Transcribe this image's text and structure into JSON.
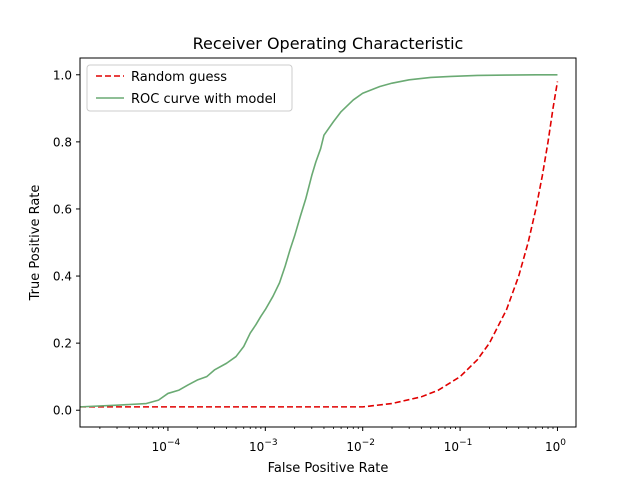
{
  "chart_data": {
    "type": "line",
    "title": "Receiver Operating Characteristic",
    "xlabel": "False Positive Rate",
    "ylabel": "True Positive Rate",
    "xscale": "log",
    "xlim": [
      1.25e-05,
      1.55
    ],
    "ylim": [
      -0.05,
      1.05
    ],
    "grid": false,
    "legend": "upper left",
    "x_ticks": [
      {
        "value": 0.0001,
        "base": "10",
        "exponent": "−4"
      },
      {
        "value": 0.001,
        "base": "10",
        "exponent": "−3"
      },
      {
        "value": 0.01,
        "base": "10",
        "exponent": "−2"
      },
      {
        "value": 0.1,
        "base": "10",
        "exponent": "−1"
      },
      {
        "value": 1,
        "base": "10",
        "exponent": "0"
      }
    ],
    "y_ticks": [
      {
        "value": 0.0,
        "label": "0.0"
      },
      {
        "value": 0.2,
        "label": "0.2"
      },
      {
        "value": 0.4,
        "label": "0.4"
      },
      {
        "value": 0.6,
        "label": "0.6"
      },
      {
        "value": 0.8,
        "label": "0.8"
      },
      {
        "value": 1.0,
        "label": "1.0"
      }
    ],
    "series": [
      {
        "name": "Random guess",
        "color": "#e00000",
        "style": "dashed",
        "x": [
          1.25e-05,
          0.001,
          0.01,
          0.02,
          0.04,
          0.06,
          0.1,
          0.15,
          0.2,
          0.3,
          0.4,
          0.5,
          0.6,
          0.7,
          0.8,
          0.9,
          1.0
        ],
        "y": [
          0.01,
          0.01,
          0.01,
          0.02,
          0.04,
          0.06,
          0.1,
          0.15,
          0.2,
          0.3,
          0.4,
          0.5,
          0.6,
          0.7,
          0.8,
          0.9,
          0.98
        ]
      },
      {
        "name": "ROC curve with model",
        "color": "#6aaa73",
        "style": "solid",
        "x": [
          1.25e-05,
          3e-05,
          6e-05,
          8e-05,
          0.0001,
          0.00013,
          0.00016,
          0.0002,
          0.00025,
          0.0003,
          0.0004,
          0.0005,
          0.0006,
          0.0007,
          0.0008,
          0.0009,
          0.001,
          0.0012,
          0.0014,
          0.0016,
          0.0018,
          0.002,
          0.0023,
          0.0026,
          0.003,
          0.0033,
          0.0037,
          0.004,
          0.005,
          0.006,
          0.008,
          0.01,
          0.015,
          0.02,
          0.03,
          0.05,
          0.08,
          0.15,
          0.3,
          0.6,
          1.0
        ],
        "y": [
          0.01,
          0.015,
          0.02,
          0.03,
          0.05,
          0.06,
          0.075,
          0.09,
          0.1,
          0.12,
          0.14,
          0.16,
          0.19,
          0.23,
          0.255,
          0.28,
          0.3,
          0.34,
          0.38,
          0.43,
          0.48,
          0.52,
          0.58,
          0.63,
          0.7,
          0.74,
          0.78,
          0.82,
          0.86,
          0.89,
          0.925,
          0.945,
          0.965,
          0.975,
          0.985,
          0.992,
          0.995,
          0.998,
          0.999,
          1.0,
          1.0
        ]
      }
    ]
  }
}
